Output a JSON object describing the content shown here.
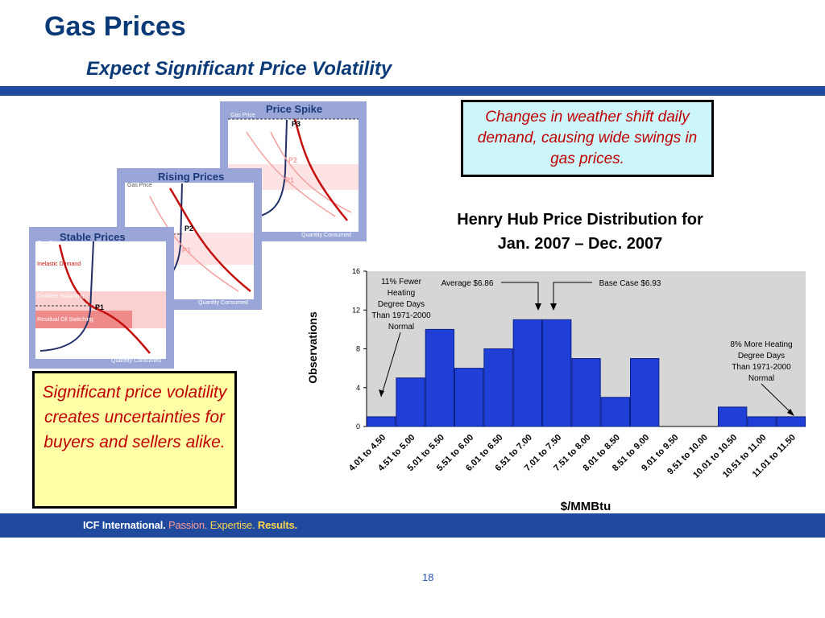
{
  "slide": {
    "title": "Gas Prices",
    "subtitle": "Expect Significant Price Volatility",
    "page_number": "18"
  },
  "callouts": {
    "weather": "Changes in weather shift daily demand, causing wide swings in gas prices.",
    "volatility": "Significant price volatility creates uncertainties for buyers and sellers alike."
  },
  "footer": {
    "company": "ICF International.",
    "tag_passion": "Passion.",
    "tag_expertise": "Expertise.",
    "tag_results": "Results."
  },
  "panels": {
    "stable": {
      "title": "Stable Prices",
      "ylabel": "Gas Price",
      "xlabel": "Quantity Consumed",
      "point": "P1",
      "label_demand": "Inelastic Demand",
      "label_switching": "Distillate Switching",
      "label_residual": "Residual Oil Switching"
    },
    "rising": {
      "title": "Rising Prices",
      "ylabel": "Gas Price",
      "xlabel": "Quantity Consumed",
      "point_high": "P2",
      "point_low": "P1"
    },
    "spike": {
      "title": "Price Spike",
      "ylabel": "Gas Price",
      "xlabel": "Quantity Consumed",
      "point_top": "P3",
      "point_mid": "P2",
      "point_low": "P1"
    }
  },
  "chart_data": {
    "type": "bar",
    "title_line1": "Henry Hub Price Distribution for",
    "title_line2": "Jan. 2007 – Dec. 2007",
    "xlabel": "$/MMBtu",
    "ylabel": "Observations",
    "ylim": [
      0,
      16
    ],
    "yticks": [
      "0",
      "4",
      "8",
      "12",
      "16"
    ],
    "categories": [
      "4.01 to 4.50",
      "4.51 to 5.00",
      "5.01 to 5.50",
      "5.51 to 6.00",
      "6.01 to 6.50",
      "6.51 to 7.00",
      "7.01 to 7.50",
      "7.51 to 8.00",
      "8.01 to 8.50",
      "8.51 to 9.00",
      "9.01 to 9.50",
      "9.51 to 10.00",
      "10.01 to 10.50",
      "10.51 to 11.00",
      "11.01 to 11.50"
    ],
    "values": [
      1,
      5,
      10,
      6,
      8,
      11,
      11,
      7,
      3,
      7,
      0,
      0,
      2,
      1,
      1
    ],
    "grid": false,
    "colors": {
      "bar": "#1f3fd6",
      "plot_bg": "#d6d6d6"
    },
    "annotations": {
      "fewer": [
        "11% Fewer",
        "Heating",
        "Degree Days",
        "Than 1971-2000",
        "Normal"
      ],
      "average": "Average $6.86",
      "base": "Base Case $6.93",
      "more": [
        "8% More Heating",
        "Degree Days",
        "Than 1971-2000",
        "Normal"
      ]
    }
  }
}
